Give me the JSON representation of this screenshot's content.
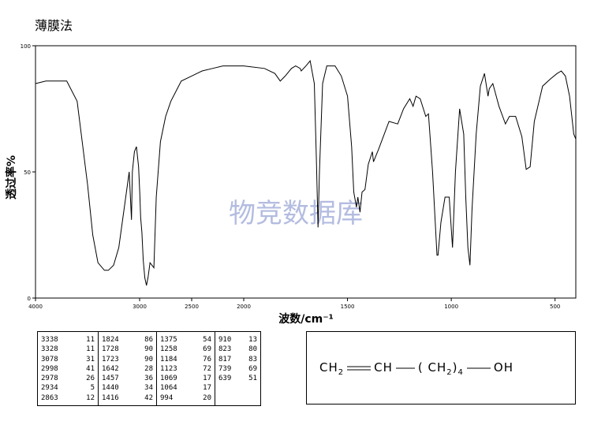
{
  "title": "薄膜法",
  "watermark": "物竞数据库",
  "chart_data": {
    "type": "line",
    "xlabel": "波数/cm⁻¹",
    "ylabel": "透过率%",
    "xlim": [
      4000,
      400
    ],
    "ylim": [
      0,
      100
    ],
    "x_ticks": [
      "4000",
      "3000",
      "2500",
      "2000",
      "1500",
      "1000",
      "500"
    ],
    "y_ticks": [
      "0",
      "50",
      "100"
    ],
    "series": [
      {
        "x": [
          4000,
          3900,
          3800,
          3700,
          3600,
          3500,
          3450,
          3400,
          3338,
          3300,
          3250,
          3200,
          3150,
          3100,
          3078,
          3070,
          3050,
          3030,
          3010,
          2998,
          2990,
          2978,
          2965,
          2950,
          2934,
          2920,
          2900,
          2863,
          2840,
          2800,
          2750,
          2700,
          2600,
          2500,
          2400,
          2300,
          2200,
          2100,
          2000,
          1900,
          1850,
          1824,
          1800,
          1770,
          1750,
          1728,
          1723,
          1700,
          1680,
          1660,
          1650,
          1642,
          1635,
          1620,
          1600,
          1560,
          1530,
          1500,
          1480,
          1470,
          1457,
          1450,
          1440,
          1430,
          1416,
          1400,
          1380,
          1375,
          1350,
          1300,
          1258,
          1230,
          1200,
          1184,
          1170,
          1150,
          1123,
          1110,
          1090,
          1069,
          1064,
          1050,
          1030,
          1010,
          994,
          980,
          960,
          940,
          930,
          920,
          910,
          900,
          880,
          860,
          840,
          823,
          817,
          800,
          770,
          739,
          720,
          690,
          660,
          639,
          620,
          600,
          560,
          520,
          490,
          470,
          450,
          430,
          410,
          400
        ],
        "y": [
          85,
          86,
          86,
          86,
          78,
          45,
          25,
          14,
          11,
          11,
          13,
          20,
          35,
          50,
          31,
          50,
          58,
          60,
          52,
          41,
          32,
          26,
          15,
          8,
          5,
          8,
          14,
          12,
          40,
          62,
          72,
          78,
          86,
          88,
          90,
          91,
          92,
          92,
          92,
          91,
          89,
          86,
          88,
          91,
          92,
          91,
          90,
          92,
          94,
          85,
          55,
          28,
          50,
          85,
          92,
          92,
          88,
          80,
          60,
          42,
          36,
          40,
          34,
          42,
          43,
          53,
          58,
          54,
          59,
          70,
          69,
          75,
          79,
          76,
          80,
          79,
          72,
          73,
          50,
          17,
          17,
          30,
          40,
          40,
          20,
          50,
          75,
          65,
          40,
          20,
          13,
          35,
          65,
          84,
          89,
          80,
          83,
          85,
          76,
          69,
          72,
          72,
          64,
          51,
          52,
          70,
          84,
          87,
          89,
          90,
          88,
          80,
          65,
          63
        ]
      }
    ]
  },
  "peaks": [
    [
      [
        "3338",
        "11"
      ],
      [
        "3328",
        "11"
      ],
      [
        "3078",
        "31"
      ],
      [
        "2998",
        "41"
      ],
      [
        "2978",
        "26"
      ],
      [
        "2934",
        "5"
      ],
      [
        "2863",
        "12"
      ]
    ],
    [
      [
        "1824",
        "86"
      ],
      [
        "1728",
        "90"
      ],
      [
        "1723",
        "90"
      ],
      [
        "1642",
        "28"
      ],
      [
        "1457",
        "36"
      ],
      [
        "1440",
        "34"
      ],
      [
        "1416",
        "42"
      ]
    ],
    [
      [
        "1375",
        "54"
      ],
      [
        "1258",
        "69"
      ],
      [
        "1184",
        "76"
      ],
      [
        "1123",
        "72"
      ],
      [
        "1069",
        "17"
      ],
      [
        "1064",
        "17"
      ],
      [
        "994",
        "20"
      ]
    ],
    [
      [
        "910",
        "13"
      ],
      [
        "823",
        "80"
      ],
      [
        "817",
        "83"
      ],
      [
        "739",
        "69"
      ],
      [
        "639",
        "51"
      ]
    ]
  ],
  "structure": {
    "part1": "CH",
    "sub1": "2",
    "part2": "CH",
    "part3": "( CH",
    "sub2": "2",
    "part4": ")",
    "sub3": "4",
    "part5": "OH"
  }
}
